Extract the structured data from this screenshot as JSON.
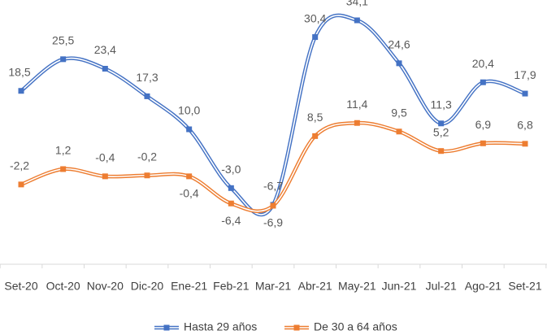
{
  "chart_data": {
    "type": "line",
    "categories": [
      "Set-20",
      "Oct-20",
      "Nov-20",
      "Dic-20",
      "Ene-21",
      "Feb-21",
      "Mar-21",
      "Abr-21",
      "May-21",
      "Jun-21",
      "Jul-21",
      "Ago-21",
      "Set-21"
    ],
    "series": [
      {
        "name": "Hasta 29 años",
        "color": "#4472c4",
        "values": [
          18.5,
          25.5,
          23.4,
          17.3,
          10.0,
          -3.0,
          -6.7,
          30.4,
          34.1,
          24.6,
          11.3,
          20.4,
          17.9
        ],
        "value_labels": [
          "18,5",
          "25,5",
          "23,4",
          "17,3",
          "10,0",
          "-3,0",
          "-6,7",
          "30,4",
          "34,1",
          "24,6",
          "11,3",
          "20,4",
          "17,9"
        ]
      },
      {
        "name": "De 30 a 64 años",
        "color": "#ed7d31",
        "values": [
          -2.2,
          1.2,
          -0.4,
          -0.2,
          -0.4,
          -6.4,
          -6.9,
          8.5,
          11.4,
          9.5,
          5.2,
          6.9,
          6.8
        ],
        "value_labels": [
          "-2,2",
          "1,2",
          "-0,4",
          "-0,2",
          "-0,4",
          "-6,4",
          "-6,9",
          "8,5",
          "11,4",
          "9,5",
          "5,2",
          "6,9",
          "6,8"
        ]
      }
    ],
    "smooth": true,
    "grid": false,
    "legend": "bottom"
  }
}
